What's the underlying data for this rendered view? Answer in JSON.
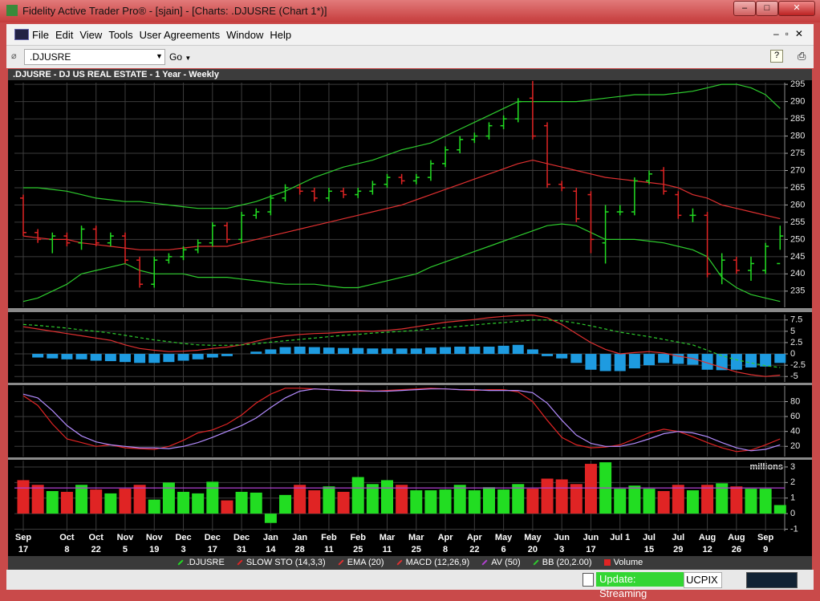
{
  "window": {
    "title": "Fidelity Active Trader Pro® - [sjain] - [Charts: .DJUSRE (Chart 1*)]"
  },
  "menu": [
    "File",
    "Edit",
    "View",
    "Tools",
    "User Agreements",
    "Window",
    "Help"
  ],
  "toolbar": {
    "symbol": ".DJUSRE",
    "go": "Go"
  },
  "status": {
    "update": "Update: Streaming",
    "fund": "UCPIX"
  },
  "chart_data": [
    {
      "type": "ohlc",
      "title": ".DJUSRE - DJ US REAL ESTATE - 1 Year - Weekly",
      "ohlc": {
        "name": ".DJUSRE",
        "up_color": "#22dd22",
        "down_color": "#e02424",
        "open": [
          262,
          252,
          250,
          251,
          249,
          253,
          249,
          251,
          244,
          237,
          244,
          245,
          247,
          249,
          254,
          250,
          257,
          258,
          262,
          265,
          264,
          262,
          264,
          263,
          264,
          266,
          268,
          267,
          268,
          272,
          276,
          279,
          280,
          283,
          285,
          291,
          283,
          266,
          264,
          263,
          249,
          258,
          258,
          267,
          270,
          263,
          257,
          257,
          240,
          244,
          241,
          241,
          243
        ],
        "high": [
          263,
          253,
          252,
          252,
          254,
          254,
          252,
          252,
          245,
          245,
          246,
          248,
          250,
          255,
          255,
          258,
          259,
          263,
          266,
          266,
          265,
          265,
          265,
          265,
          267,
          269,
          269,
          269,
          273,
          277,
          280,
          281,
          284,
          286,
          291,
          296,
          284,
          267,
          265,
          264,
          260,
          260,
          268,
          270,
          271,
          264,
          259,
          258,
          246,
          245,
          245,
          249,
          254
        ],
        "low": [
          251,
          249,
          246,
          248,
          247,
          248,
          248,
          243,
          236,
          236,
          243,
          244,
          246,
          248,
          249,
          249,
          256,
          257,
          261,
          263,
          261,
          261,
          262,
          262,
          263,
          265,
          266,
          266,
          267,
          271,
          275,
          278,
          279,
          282,
          284,
          279,
          265,
          264,
          255,
          246,
          243,
          257,
          257,
          266,
          263,
          256,
          255,
          239,
          237,
          240,
          238,
          240,
          247
        ],
        "close": [
          252,
          250,
          251,
          249,
          253,
          249,
          251,
          244,
          237,
          244,
          245,
          247,
          249,
          254,
          250,
          257,
          258,
          262,
          265,
          264,
          262,
          264,
          263,
          264,
          266,
          268,
          267,
          268,
          272,
          276,
          279,
          280,
          283,
          285,
          290,
          280,
          266,
          265,
          256,
          250,
          258,
          258,
          267,
          269,
          264,
          257,
          257,
          240,
          244,
          241,
          243,
          248,
          251
        ]
      },
      "series": [
        {
          "name": "EMA (20)",
          "color": "#e03030",
          "values": [
            251,
            250.5,
            250,
            250,
            249,
            248.5,
            248,
            247.5,
            247,
            247,
            247,
            247.5,
            248,
            248,
            248,
            249,
            250,
            251,
            252,
            253,
            254,
            255,
            256,
            257,
            258,
            259,
            260,
            261.5,
            263,
            264.5,
            266,
            267.5,
            269,
            270.5,
            272,
            273,
            272,
            271,
            270,
            269,
            268,
            267.5,
            267,
            266.5,
            266,
            265,
            263,
            262,
            260,
            259,
            258,
            257,
            256
          ]
        }
      ],
      "bands": {
        "name": "BB (20,2.00)",
        "color": "#2ecc2e",
        "upper": [
          265,
          265,
          264.5,
          264,
          263,
          262,
          261.5,
          261,
          261,
          260.5,
          260,
          259.5,
          259,
          259,
          259,
          260,
          261,
          262.5,
          264,
          266,
          268,
          269.5,
          271,
          272,
          273,
          274.5,
          276,
          277,
          278,
          280,
          282,
          284,
          286,
          288,
          290,
          290,
          290,
          290,
          290,
          290.5,
          291,
          291.5,
          292,
          292,
          292,
          292.5,
          293,
          294,
          295,
          295,
          294,
          292,
          288
        ],
        "lower": [
          232,
          233,
          235,
          237,
          240,
          241,
          242,
          243,
          241,
          240,
          240,
          240,
          239,
          239,
          239,
          238.5,
          238,
          237.5,
          237,
          237,
          237,
          236.5,
          236,
          236,
          237,
          238,
          239,
          240,
          242,
          243.5,
          245,
          246.5,
          248,
          249.5,
          251,
          252.5,
          254,
          254.5,
          254,
          252,
          250,
          250,
          250,
          249.5,
          249,
          248,
          247,
          245,
          239,
          236,
          234,
          233,
          232
        ]
      },
      "ylim": [
        230.3,
        295.5
      ],
      "yticks": [
        235,
        240,
        245,
        250,
        255,
        260,
        265,
        270,
        275,
        280,
        285,
        290,
        295
      ],
      "grid": true
    },
    {
      "type": "macd",
      "name": "MACD (12,26,9)",
      "series": [
        {
          "color": "#e03030",
          "dash": false,
          "values": [
            6,
            5.5,
            5,
            4.5,
            4,
            3.5,
            3,
            2,
            1.2,
            0.8,
            0.5,
            0.6,
            0.8,
            1.2,
            1.5,
            2,
            2.8,
            3.5,
            4,
            4.3,
            4.5,
            4.6,
            4.8,
            5,
            5,
            5.2,
            5.5,
            6,
            6.5,
            7,
            7.3,
            7.6,
            8,
            8.3,
            8.5,
            8.6,
            8,
            6.5,
            4.5,
            2.5,
            1,
            0,
            0.3,
            0.5,
            0.2,
            -0.5,
            -1,
            -2,
            -3,
            -4,
            -4.6,
            -5,
            -4.7
          ]
        },
        {
          "color": "#2ecc2e",
          "dash": true,
          "values": [
            6.5,
            6.3,
            6,
            5.7,
            5.3,
            5,
            4.6,
            4.1,
            3.6,
            3.1,
            2.7,
            2.3,
            2,
            1.9,
            1.9,
            2,
            2.2,
            2.6,
            2.9,
            3.2,
            3.5,
            3.8,
            4.1,
            4.3,
            4.6,
            4.8,
            5,
            5.2,
            5.5,
            5.8,
            6.1,
            6.4,
            6.7,
            6.9,
            7.2,
            7.5,
            7.5,
            7.3,
            6.8,
            6.2,
            5.5,
            4.8,
            4.3,
            3.8,
            3.2,
            2.6,
            2,
            0.8,
            -0.4,
            -1.3,
            -2,
            -2.6,
            -3
          ]
        }
      ],
      "histogram": {
        "color": "#1e9be0",
        "values": [
          0,
          -0.8,
          -1,
          -1.2,
          -1.2,
          -1.5,
          -1.6,
          -1.8,
          -2,
          -2,
          -1.8,
          -1.5,
          -1.2,
          -0.8,
          -0.5,
          0,
          0.5,
          1,
          1.5,
          1.6,
          1.5,
          1.4,
          1.3,
          1.3,
          1.2,
          1.2,
          1.2,
          1.2,
          1.4,
          1.5,
          1.6,
          1.6,
          1.6,
          1.8,
          2,
          1,
          -0.5,
          -1,
          -2,
          -3.5,
          -3.8,
          -3.8,
          -3.2,
          -2.5,
          -2,
          -2.2,
          -2.4,
          -3.5,
          -3.6,
          -3.5,
          -3,
          -2.8,
          -2
        ]
      },
      "ylim": [
        -6.2,
        8.7
      ],
      "yticks": [
        -5,
        -2.5,
        0,
        2.5,
        5,
        7.5
      ],
      "grid": true
    },
    {
      "type": "line",
      "name": "SLOW STO (14,3,3)",
      "series": [
        {
          "color": "#e02424",
          "values": [
            88,
            75,
            50,
            30,
            25,
            20,
            22,
            18,
            17,
            16,
            20,
            28,
            38,
            42,
            50,
            62,
            78,
            90,
            98,
            98,
            97,
            96,
            95,
            94,
            94,
            95,
            96,
            97,
            98,
            97,
            96,
            95,
            96,
            96,
            93,
            80,
            55,
            32,
            22,
            18,
            19,
            22,
            30,
            38,
            43,
            40,
            33,
            25,
            18,
            13,
            15,
            22,
            30
          ]
        },
        {
          "color": "#b48cff",
          "values": [
            90,
            85,
            68,
            48,
            34,
            26,
            22,
            20,
            18,
            18,
            17,
            20,
            25,
            32,
            40,
            48,
            58,
            72,
            85,
            94,
            97,
            96,
            95,
            95,
            94,
            94,
            95,
            96,
            97,
            97,
            96,
            96,
            95,
            95,
            95,
            92,
            78,
            55,
            35,
            24,
            20,
            20,
            24,
            30,
            37,
            40,
            38,
            33,
            25,
            18,
            14,
            16,
            22
          ]
        }
      ],
      "ylim": [
        6.3,
        101
      ],
      "yticks": [
        20,
        40,
        60,
        80
      ],
      "grid": true
    },
    {
      "type": "bar",
      "name": "Volume",
      "unit": "millions",
      "up_color": "#22dd22",
      "down_color": "#e02424",
      "categories": [
        "Sep 17",
        null,
        null,
        "Oct 8",
        null,
        "Oct 22",
        null,
        "Nov 5",
        null,
        "Nov 19",
        null,
        "Dec 3",
        null,
        "Dec 17",
        null,
        "Dec 31",
        null,
        "Jan 14",
        null,
        "Jan 28",
        null,
        "Feb 11",
        null,
        "Feb 25",
        null,
        "Mar 11",
        null,
        "Mar 25",
        null,
        "Apr 8",
        null,
        "Apr 22",
        null,
        "May 6",
        null,
        "May 20",
        null,
        "Jun 3",
        null,
        "Jun 17",
        null,
        "Jul 1",
        null,
        "Jul 15",
        null,
        "Jul 29",
        null,
        "Aug 12",
        null,
        "Aug 26",
        null,
        "Sep 9",
        null
      ],
      "values": [
        2.15,
        1.85,
        1.45,
        1.4,
        1.85,
        1.55,
        1.3,
        1.6,
        1.85,
        0.9,
        2.0,
        1.4,
        1.3,
        2.05,
        0.85,
        1.4,
        1.35,
        -0.6,
        1.2,
        1.85,
        1.5,
        1.75,
        1.4,
        2.35,
        1.9,
        2.15,
        1.85,
        1.5,
        1.5,
        1.55,
        1.85,
        1.5,
        1.7,
        1.55,
        1.9,
        1.6,
        2.25,
        2.2,
        1.9,
        3.2,
        3.3,
        1.6,
        1.8,
        1.6,
        1.45,
        1.85,
        1.5,
        1.85,
        1.95,
        1.75,
        1.6,
        1.6,
        0.55
      ],
      "average": {
        "name": "AV (50)",
        "color": "#b040d0",
        "value": 1.65
      },
      "ylim": [
        -1.13,
        3.41
      ],
      "yticks": [
        -1,
        0,
        1,
        2,
        3
      ],
      "grid": true
    }
  ]
}
